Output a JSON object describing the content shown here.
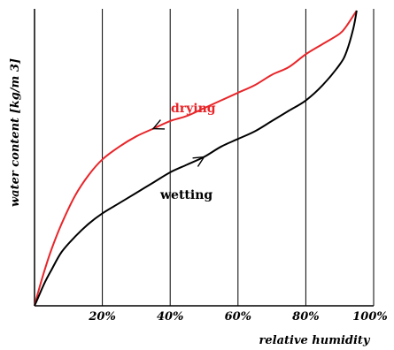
{
  "chart_data": {
    "type": "line",
    "xlabel": "relative humidity",
    "ylabel": "water content [kg/m 3]",
    "xlim": [
      0,
      100
    ],
    "xticks": [
      20,
      40,
      60,
      80,
      100
    ],
    "xtick_labels": [
      "20%",
      "40%",
      "60%",
      "80%",
      "100%"
    ],
    "grid": "vertical lines at x ticks",
    "series": [
      {
        "name": "drying",
        "color": "#e8262a",
        "x": [
          0,
          1,
          3,
          5,
          8,
          12,
          16,
          20,
          25,
          30,
          35,
          40,
          45,
          50,
          55,
          60,
          65,
          70,
          75,
          80,
          85,
          90,
          92,
          94,
          95
        ],
        "y": [
          0,
          5,
          14,
          22,
          32,
          43,
          51,
          57,
          62,
          66,
          69,
          72,
          74,
          77,
          80,
          83,
          86,
          90,
          93,
          98,
          102,
          106,
          109,
          113,
          115
        ],
        "arrow": "left",
        "arrow_at_x": 35
      },
      {
        "name": "wetting",
        "color": "#000000",
        "x": [
          0,
          1,
          3,
          5,
          8,
          12,
          16,
          20,
          25,
          30,
          35,
          40,
          45,
          50,
          55,
          60,
          65,
          70,
          75,
          80,
          85,
          90,
          92,
          94,
          95
        ],
        "y": [
          0,
          3,
          9,
          14,
          21,
          27,
          32,
          36,
          40,
          44,
          48,
          52,
          55,
          58,
          62,
          65,
          68,
          72,
          76,
          80,
          86,
          94,
          99,
          108,
          115
        ],
        "arrow": "right",
        "arrow_at_x": 50
      }
    ]
  }
}
